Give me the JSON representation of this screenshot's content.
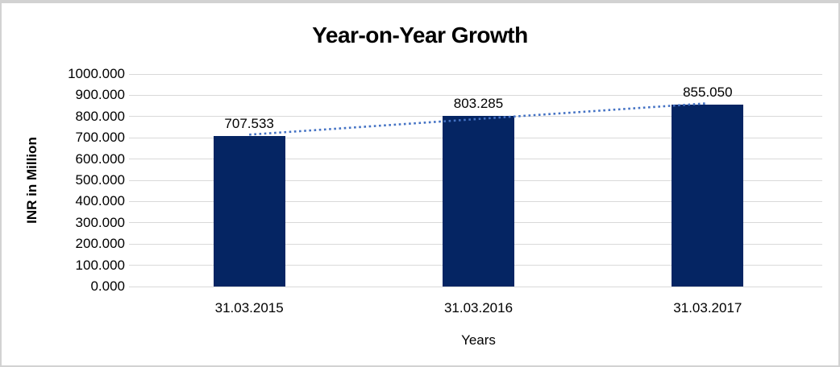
{
  "chart_data": {
    "type": "bar",
    "title": "Year-on-Year Growth",
    "categories": [
      "31.03.2015",
      "31.03.2016",
      "31.03.2017"
    ],
    "values": [
      707.533,
      803.285,
      855.05
    ],
    "data_labels": [
      "707.533",
      "803.285",
      "855.050"
    ],
    "xlabel": "Years",
    "ylabel": "INR in Million",
    "ylim": [
      0,
      1000
    ],
    "y_ticks": {
      "values": [
        0,
        100,
        200,
        300,
        400,
        500,
        600,
        700,
        800,
        900,
        1000
      ],
      "labels": [
        "0.000",
        "100.000",
        "200.000",
        "300.000",
        "400.000",
        "500.000",
        "600.000",
        "700.000",
        "800.000",
        "900.000",
        "1000.000"
      ]
    },
    "grid": "horizontal",
    "legend": "none",
    "trendline": {
      "type": "linear",
      "style": "dotted"
    },
    "colors": {
      "bar": "#052563",
      "trendline": "#4472c4",
      "gridline": "#d9d9d9",
      "text": "#000000",
      "frame_border": "#d2d2d2"
    }
  }
}
